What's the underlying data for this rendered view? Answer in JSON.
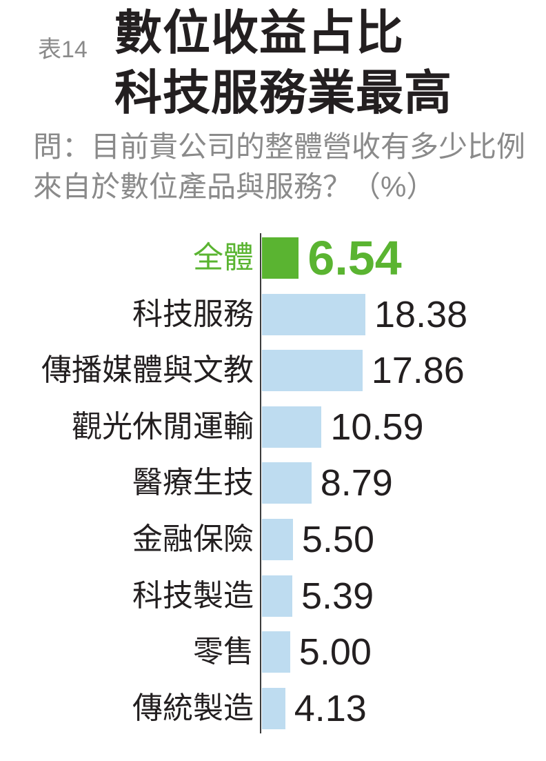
{
  "header": {
    "tag": "表14",
    "title_line1": "數位收益占比",
    "title_line2": "科技服務業最高",
    "question_line1": "問：目前貴公司的整體營收有多少比例",
    "question_line2": "來自於數位產品與服務？（%）"
  },
  "colors": {
    "highlight_green": "#5ab431",
    "bar_blue": "#bedcf0",
    "text_black": "#231f20",
    "text_gray": "#8a8a8a",
    "axis_line": "#3c3c3c"
  },
  "chart_data": {
    "type": "bar",
    "orientation": "horizontal",
    "unit": "%",
    "title": "數位收益占比 科技服務業最高",
    "subtitle": "問：目前貴公司的整體營收有多少比例來自於數位產品與服務？（%）",
    "categories": [
      "全體",
      "科技服務",
      "傳播媒體與文教",
      "觀光休閒運輸",
      "醫療生技",
      "金融保險",
      "科技製造",
      "零售",
      "傳統製造"
    ],
    "values": [
      6.54,
      18.38,
      17.86,
      10.59,
      8.79,
      5.5,
      5.39,
      5.0,
      4.13
    ],
    "value_labels": [
      "6.54",
      "18.38",
      "17.86",
      "10.59",
      "8.79",
      "5.50",
      "5.39",
      "5.00",
      "4.13"
    ],
    "highlight_index": 0,
    "xlim": [
      0,
      20
    ],
    "grid": false,
    "legend": false,
    "axis_line_shown": true
  }
}
